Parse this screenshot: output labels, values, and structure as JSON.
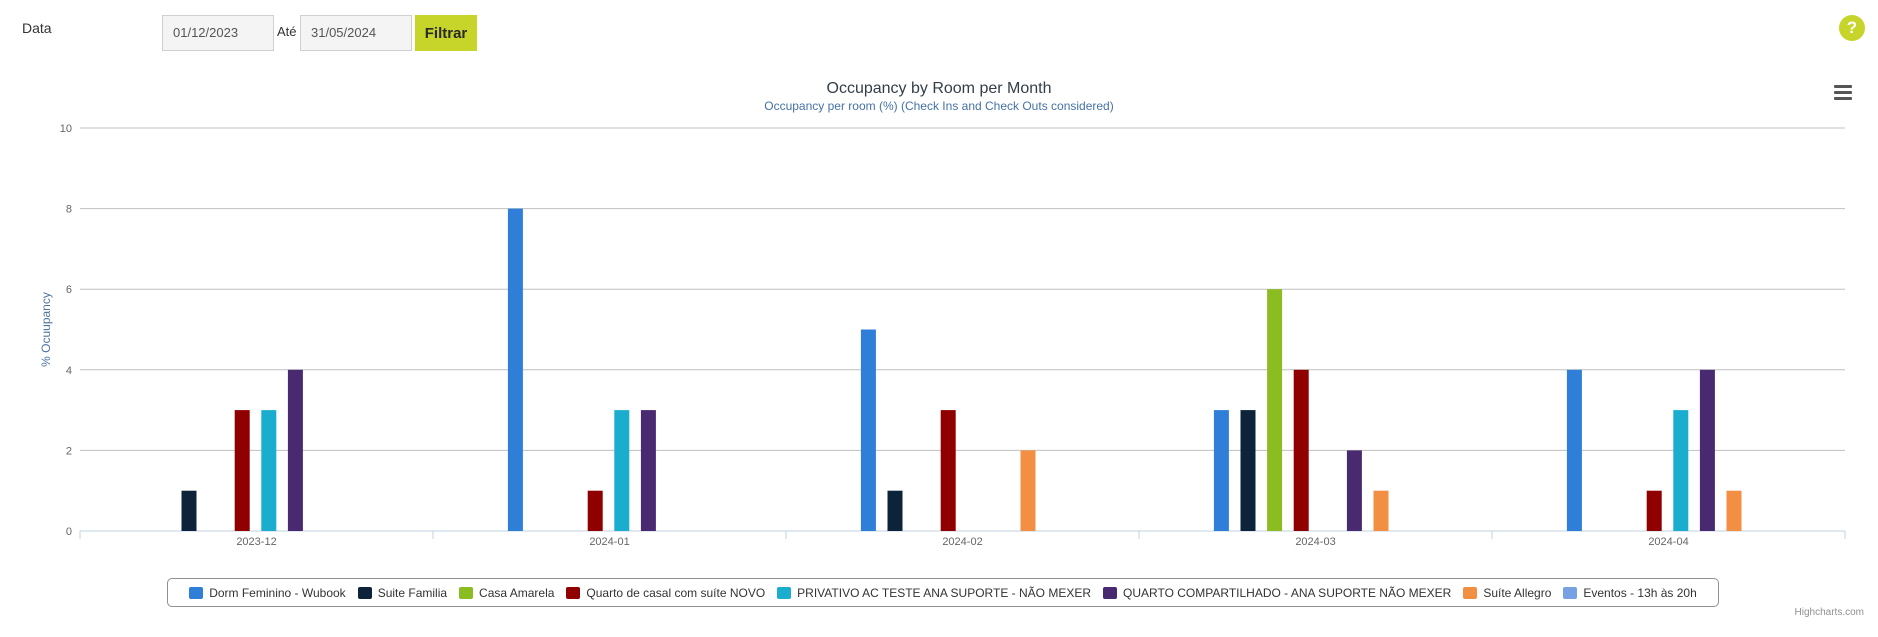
{
  "filter": {
    "label": "Data",
    "date_from": "01/12/2023",
    "ate_label": "Até",
    "date_to": "31/05/2024",
    "button_label": "Filtrar"
  },
  "help_icon": "?",
  "menu_icon": "hamburger-menu-icon",
  "colors": {
    "accent": "#c7d42a"
  },
  "credits": "Highcharts.com",
  "chart_data": {
    "type": "bar",
    "title": "Occupancy by Room per Month",
    "subtitle": "Occupancy per room (%) (Check Ins and Check Outs considered)",
    "ylabel": "% Ocuupancy",
    "xlabel": "",
    "ylim": [
      0,
      10
    ],
    "yticks": [
      0,
      2,
      4,
      6,
      8,
      10
    ],
    "grid": true,
    "legend_position": "bottom-center",
    "categories": [
      "2023-12",
      "2024-01",
      "2024-02",
      "2024-03",
      "2024-04"
    ],
    "series": [
      {
        "name": "Dorm Feminino - Wubook",
        "color": "#2f7ed8",
        "values": [
          0,
          8,
          5,
          3,
          4
        ]
      },
      {
        "name": "Suite Familia",
        "color": "#0d233a",
        "values": [
          1,
          0,
          1,
          3,
          0
        ]
      },
      {
        "name": "Casa Amarela",
        "color": "#8bbc21",
        "values": [
          0,
          0,
          0,
          6,
          0
        ]
      },
      {
        "name": "Quarto de casal com suíte NOVO",
        "color": "#910000",
        "values": [
          3,
          1,
          3,
          4,
          1
        ]
      },
      {
        "name": "PRIVATIVO AC TESTE ANA SUPORTE - NÃO MEXER",
        "color": "#1aadce",
        "values": [
          3,
          3,
          0,
          0,
          3
        ]
      },
      {
        "name": "QUARTO COMPARTILHADO - ANA SUPORTE NÃO MEXER",
        "color": "#492970",
        "values": [
          4,
          3,
          0,
          2,
          4
        ]
      },
      {
        "name": "Suíte Allegro",
        "color": "#f28f43",
        "values": [
          0,
          0,
          2,
          1,
          1
        ]
      },
      {
        "name": "Eventos - 13h às 20h",
        "color": "#77a1e5",
        "values": [
          0,
          0,
          0,
          0,
          0
        ]
      }
    ]
  }
}
